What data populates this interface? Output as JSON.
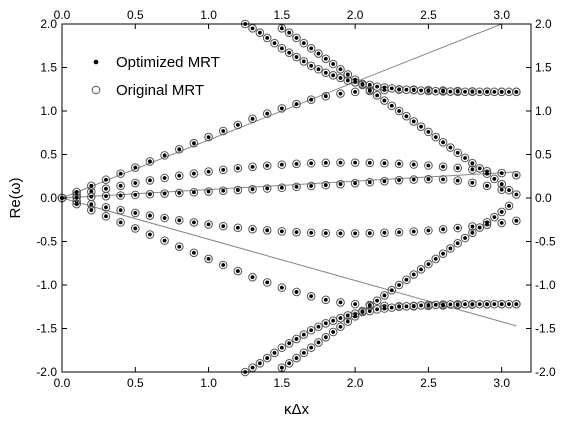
{
  "chart_data": {
    "type": "scatter",
    "xlabel": "κΔx",
    "ylabel": "Re(ω)",
    "xlim": [
      0.0,
      3.2
    ],
    "ylim": [
      -2.0,
      2.0
    ],
    "x_ticks": [
      "0.0",
      "0.5",
      "1.0",
      "1.5",
      "2.0",
      "2.5",
      "3.0"
    ],
    "y_ticks": [
      "-2.0",
      "-1.5",
      "-1.0",
      "-0.5",
      "0.0",
      "0.5",
      "1.0",
      "1.5",
      "2.0"
    ],
    "grid": false,
    "legend_position": "top-left",
    "series": [
      {
        "name": "Optimized MRT",
        "marker": "filled-dot",
        "color": "#000000",
        "x": [
          0.0,
          0.05,
          0.1,
          0.15,
          0.2,
          0.25,
          0.3,
          0.35,
          0.4,
          0.45,
          0.5,
          0.55,
          0.6,
          0.65,
          0.7,
          0.75,
          0.8,
          0.85,
          0.9,
          0.95,
          1.0,
          1.05,
          1.1,
          1.15,
          1.2,
          1.25,
          1.3,
          1.35,
          1.4,
          1.45,
          1.5,
          1.55,
          1.6,
          1.65,
          1.7,
          1.75,
          1.8,
          1.85,
          1.9,
          1.95,
          2.0,
          2.05,
          2.1,
          2.15,
          2.2,
          2.25,
          2.3,
          2.35,
          2.4,
          2.45,
          2.5,
          2.55,
          2.6,
          2.65,
          2.7,
          2.75,
          2.8,
          2.85,
          2.9,
          2.95,
          3.0,
          3.05,
          3.1
        ],
        "branches": [
          [
            0.0,
            0.034,
            0.068,
            0.101,
            0.134,
            0.166,
            0.198,
            0.229,
            0.259,
            0.289,
            0.318,
            0.346,
            0.374,
            0.4,
            0.426,
            0.451,
            0.475,
            0.498,
            0.52,
            0.541,
            0.562,
            0.581,
            0.599,
            0.617,
            0.633,
            0.648,
            0.663,
            0.676,
            0.688,
            0.7,
            0.71,
            0.719,
            0.727,
            0.734,
            0.74,
            0.745,
            0.748,
            0.751,
            0.753,
            0.754,
            0.753,
            0.752,
            0.749,
            0.746,
            0.741,
            0.736,
            0.729,
            0.721,
            0.713,
            0.703,
            0.692,
            0.68,
            0.667,
            0.654,
            0.639,
            0.623,
            0.606,
            0.589,
            0.57,
            0.55,
            0.53,
            0.508,
            0.486
          ],
          [
            0.0,
            -0.034,
            -0.068,
            -0.101,
            -0.134,
            -0.166,
            -0.198,
            -0.229,
            -0.259,
            -0.289,
            -0.318,
            -0.346,
            -0.374,
            -0.4,
            -0.426,
            -0.451,
            -0.475,
            -0.498,
            -0.52,
            -0.541,
            -0.562,
            -0.581,
            -0.599,
            -0.617,
            -0.633,
            -0.648,
            -0.663,
            -0.676,
            -0.688,
            -0.7,
            -0.71,
            -0.719,
            -0.727,
            -0.734,
            -0.74,
            -0.745,
            -0.748,
            -0.751,
            -0.753,
            -0.754,
            -0.753,
            -0.752,
            -0.749,
            -0.746,
            -0.741,
            -0.736,
            -0.729,
            -0.721,
            -0.713,
            -0.703,
            -0.692,
            -0.68,
            -0.667,
            -0.654,
            -0.639,
            -0.623,
            -0.606,
            -0.589,
            -0.57,
            -0.55,
            -0.53,
            -0.508,
            -0.486
          ]
        ]
      },
      {
        "name": "Original MRT",
        "marker": "open-circle",
        "color": "#000000"
      }
    ],
    "approximate_branches": [
      {
        "x": [
          0.0,
          0.1,
          0.2,
          0.3,
          0.4,
          0.5,
          0.6,
          0.7,
          0.8,
          0.9,
          1.0,
          1.1,
          1.2,
          1.3,
          1.4,
          1.5,
          1.6,
          1.7,
          1.8,
          1.9,
          2.0,
          2.1,
          2.2,
          2.3,
          2.4,
          2.5,
          2.6,
          2.7,
          2.8,
          2.9,
          3.0,
          3.1
        ],
        "y": [
          0.0,
          0.007,
          0.014,
          0.021,
          0.028,
          0.036,
          0.043,
          0.051,
          0.058,
          0.066,
          0.074,
          0.083,
          0.091,
          0.1,
          0.109,
          0.118,
          0.128,
          0.138,
          0.148,
          0.159,
          0.17,
          0.181,
          0.193,
          0.205,
          0.212,
          0.216,
          0.214,
          0.2,
          0.175,
          0.14,
          0.095,
          0.04
        ]
      },
      {
        "x": [
          0.0,
          0.1,
          0.2,
          0.3,
          0.4,
          0.5,
          0.6,
          0.7,
          0.8,
          0.9,
          1.0,
          1.1,
          1.2,
          1.3,
          1.4,
          1.5,
          1.6,
          1.7,
          1.8,
          1.9,
          2.0,
          2.1,
          2.2,
          2.3,
          2.4,
          2.5,
          2.6,
          2.7,
          2.8,
          2.9,
          3.0,
          3.1
        ],
        "y": [
          0.0,
          0.07,
          0.14,
          0.21,
          0.28,
          0.35,
          0.42,
          0.49,
          0.56,
          0.63,
          0.7,
          0.77,
          0.84,
          0.91,
          0.97,
          1.03,
          1.08,
          1.13,
          1.17,
          1.2,
          1.22,
          1.23,
          1.24,
          1.245,
          1.245,
          1.24,
          1.235,
          1.23,
          1.225,
          1.222,
          1.22,
          1.22
        ]
      },
      {
        "x": [
          0.0,
          0.1,
          0.2,
          0.3,
          0.4,
          0.5,
          0.6,
          0.7,
          0.8,
          0.9,
          1.0,
          1.1,
          1.2,
          1.3,
          1.4,
          1.5,
          1.6,
          1.7,
          1.8,
          1.9,
          2.0,
          2.1,
          2.2,
          2.3,
          2.4,
          2.5,
          2.6,
          2.7,
          2.8,
          2.9,
          3.0,
          3.1
        ],
        "y": [
          0.0,
          -0.07,
          -0.14,
          -0.21,
          -0.28,
          -0.35,
          -0.42,
          -0.49,
          -0.56,
          -0.63,
          -0.7,
          -0.77,
          -0.84,
          -0.91,
          -0.97,
          -1.03,
          -1.08,
          -1.13,
          -1.17,
          -1.2,
          -1.22,
          -1.23,
          -1.24,
          -1.245,
          -1.245,
          -1.24,
          -1.235,
          -1.23,
          -1.225,
          -1.222,
          -1.22,
          -1.22
        ]
      },
      {
        "x": [
          1.25,
          1.3,
          1.35,
          1.4,
          1.45,
          1.5,
          1.55,
          1.6,
          1.65,
          1.7,
          1.75,
          1.8,
          1.85,
          1.9,
          1.95,
          2.0,
          2.05,
          2.1,
          2.15,
          2.2,
          2.25,
          2.3,
          2.35,
          2.4,
          2.45,
          2.5,
          2.55,
          2.6,
          2.65,
          2.7,
          2.75,
          2.8,
          2.85,
          2.9,
          2.95,
          3.0,
          3.05,
          3.1
        ],
        "y": [
          2.0,
          1.95,
          1.9,
          1.84,
          1.78,
          1.72,
          1.67,
          1.62,
          1.57,
          1.52,
          1.48,
          1.44,
          1.41,
          1.38,
          1.35,
          1.33,
          1.31,
          1.3,
          1.28,
          1.27,
          1.26,
          1.25,
          1.245,
          1.24,
          1.235,
          1.23,
          1.228,
          1.225,
          1.223,
          1.222,
          1.221,
          1.22,
          1.22,
          1.22,
          1.22,
          1.22,
          1.22,
          1.22
        ]
      },
      {
        "x": [
          1.25,
          1.3,
          1.35,
          1.4,
          1.45,
          1.5,
          1.55,
          1.6,
          1.65,
          1.7,
          1.75,
          1.8,
          1.85,
          1.9,
          1.95,
          2.0,
          2.05,
          2.1,
          2.15,
          2.2,
          2.25,
          2.3,
          2.35,
          2.4,
          2.45,
          2.5,
          2.55,
          2.6,
          2.65,
          2.7,
          2.75,
          2.8,
          2.85,
          2.9,
          2.95,
          3.0,
          3.05,
          3.1
        ],
        "y": [
          -2.0,
          -1.95,
          -1.9,
          -1.84,
          -1.78,
          -1.72,
          -1.67,
          -1.62,
          -1.57,
          -1.52,
          -1.48,
          -1.44,
          -1.41,
          -1.38,
          -1.35,
          -1.33,
          -1.31,
          -1.3,
          -1.28,
          -1.27,
          -1.26,
          -1.25,
          -1.245,
          -1.24,
          -1.235,
          -1.23,
          -1.228,
          -1.225,
          -1.223,
          -1.222,
          -1.221,
          -1.22,
          -1.22,
          -1.22,
          -1.22,
          -1.22,
          -1.22,
          -1.22
        ]
      },
      {
        "x": [
          1.5,
          1.55,
          1.6,
          1.65,
          1.7,
          1.75,
          1.8,
          1.85,
          1.9,
          1.95,
          2.0,
          2.05,
          2.1,
          2.15,
          2.2,
          2.25,
          2.3,
          2.35,
          2.4,
          2.45,
          2.5,
          2.55,
          2.6,
          2.65,
          2.7,
          2.75,
          2.8,
          2.85,
          2.9,
          2.95,
          3.0,
          3.05
        ],
        "y": [
          1.95,
          1.9,
          1.84,
          1.78,
          1.72,
          1.66,
          1.6,
          1.54,
          1.48,
          1.42,
          1.36,
          1.3,
          1.24,
          1.18,
          1.12,
          1.06,
          1.0,
          0.94,
          0.88,
          0.82,
          0.76,
          0.7,
          0.64,
          0.58,
          0.52,
          0.46,
          0.4,
          0.34,
          0.28,
          0.22,
          0.16,
          0.09
        ]
      },
      {
        "x": [
          1.5,
          1.55,
          1.6,
          1.65,
          1.7,
          1.75,
          1.8,
          1.85,
          1.9,
          1.95,
          2.0,
          2.05,
          2.1,
          2.15,
          2.2,
          2.25,
          2.3,
          2.35,
          2.4,
          2.45,
          2.5,
          2.55,
          2.6,
          2.65,
          2.7,
          2.75,
          2.8,
          2.85,
          2.9,
          2.95,
          3.0,
          3.05
        ],
        "y": [
          -1.95,
          -1.9,
          -1.84,
          -1.78,
          -1.72,
          -1.66,
          -1.6,
          -1.54,
          -1.48,
          -1.42,
          -1.36,
          -1.3,
          -1.24,
          -1.18,
          -1.12,
          -1.06,
          -1.0,
          -0.94,
          -0.88,
          -0.82,
          -0.76,
          -0.7,
          -0.64,
          -0.58,
          -0.52,
          -0.46,
          -0.4,
          -0.34,
          -0.28,
          -0.22,
          -0.16,
          -0.09
        ]
      }
    ],
    "reference_lines": [
      {
        "color": "#888888",
        "x": [
          0.0,
          3.0
        ],
        "y": [
          0.0,
          2.0
        ]
      },
      {
        "color": "#888888",
        "x": [
          0.0,
          3.1
        ],
        "y": [
          0.0,
          0.3
        ]
      },
      {
        "color": "#888888",
        "x": [
          0.0,
          3.1
        ],
        "y": [
          0.0,
          -1.47
        ]
      }
    ]
  }
}
